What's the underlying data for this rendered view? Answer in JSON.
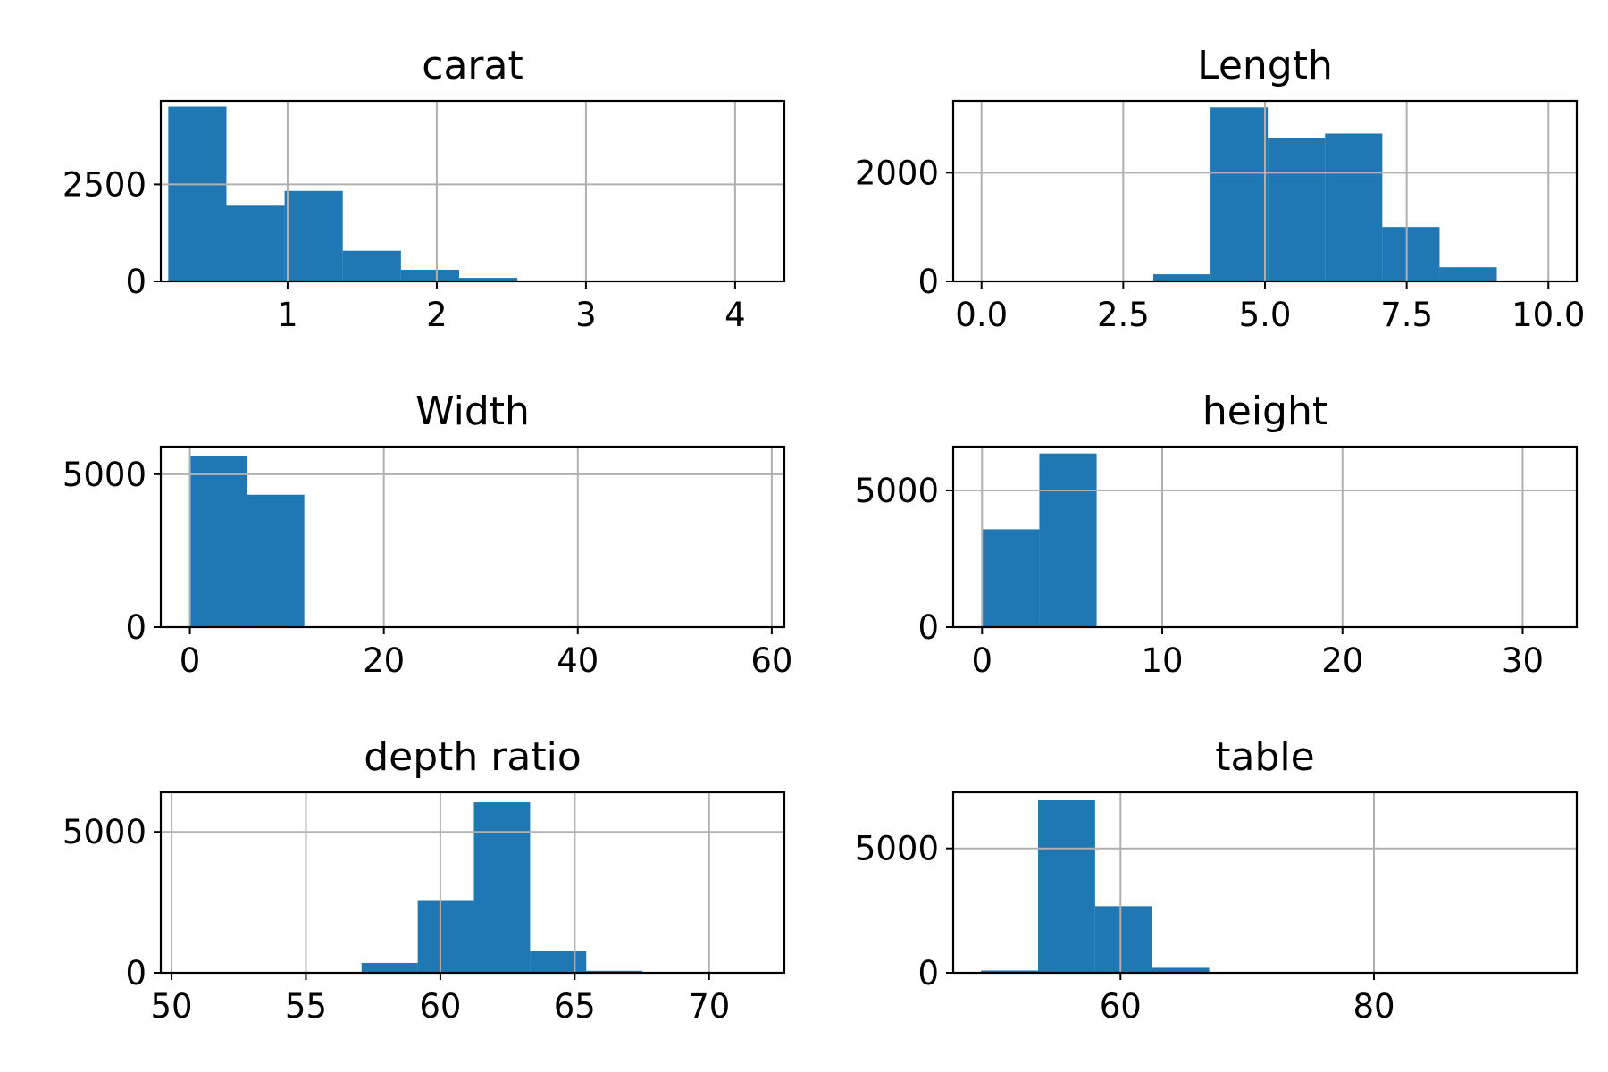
{
  "colors": {
    "bar": "#1f77b4",
    "grid": "#b0b0b0",
    "frame": "#000000"
  },
  "chart_data": [
    {
      "type": "bar",
      "title": "carat",
      "xlim": [
        0.15,
        4.33
      ],
      "ylim": [
        0,
        4650
      ],
      "xticks": [
        1,
        2,
        3,
        4
      ],
      "xtick_labels": [
        "1",
        "2",
        "3",
        "4"
      ],
      "yticks": [
        0,
        2500
      ],
      "ytick_labels": [
        "0",
        "2500"
      ],
      "bin_edges": [
        0.2,
        0.59,
        0.98,
        1.37,
        1.76,
        2.15,
        2.54,
        2.93,
        3.32,
        3.71,
        4.1
      ],
      "counts": [
        4500,
        1950,
        2330,
        790,
        300,
        90,
        10,
        5,
        2,
        1
      ],
      "grid": true
    },
    {
      "type": "bar",
      "title": "Length",
      "xlim": [
        -0.5,
        10.5
      ],
      "ylim": [
        0,
        3320
      ],
      "xticks": [
        0,
        2.5,
        5,
        7.5,
        10
      ],
      "xtick_labels": [
        "0.0",
        "2.5",
        "5.0",
        "7.5",
        "10.0"
      ],
      "yticks": [
        0,
        2000
      ],
      "ytick_labels": [
        "0",
        "2000"
      ],
      "bin_edges": [
        0,
        1.01,
        2.02,
        3.03,
        4.04,
        5.05,
        6.06,
        7.07,
        8.08,
        9.09,
        10.1
      ],
      "counts": [
        2,
        0,
        0,
        130,
        3200,
        2640,
        2720,
        1000,
        260,
        0
      ],
      "grid": true
    },
    {
      "type": "bar",
      "title": "Width",
      "xlim": [
        -3,
        61.3
      ],
      "ylim": [
        0,
        5900
      ],
      "xticks": [
        0,
        20,
        40,
        60
      ],
      "xtick_labels": [
        "0",
        "20",
        "40",
        "60"
      ],
      "yticks": [
        0,
        5000
      ],
      "ytick_labels": [
        "0",
        "5000"
      ],
      "bin_edges": [
        0,
        5.9,
        11.8,
        17.7,
        23.6,
        29.5,
        35.4,
        41.3,
        47.2,
        53.1,
        58.9
      ],
      "counts": [
        5600,
        4330,
        0,
        0,
        0,
        0,
        0,
        0,
        0,
        1
      ],
      "grid": true
    },
    {
      "type": "bar",
      "title": "height",
      "xlim": [
        -1.6,
        33.0
      ],
      "ylim": [
        0,
        6600
      ],
      "xticks": [
        0,
        10,
        20,
        30
      ],
      "xtick_labels": [
        "0",
        "10",
        "20",
        "30"
      ],
      "yticks": [
        0,
        5000
      ],
      "ytick_labels": [
        "0",
        "5000"
      ],
      "bin_edges": [
        0,
        3.18,
        6.36,
        9.54,
        12.72,
        15.9,
        19.08,
        22.26,
        25.44,
        28.62,
        31.8
      ],
      "counts": [
        3580,
        6350,
        0,
        0,
        0,
        0,
        0,
        0,
        0,
        1
      ],
      "grid": true
    },
    {
      "type": "bar",
      "title": "depth ratio",
      "xlim": [
        49.6,
        72.8
      ],
      "ylim": [
        0,
        6400
      ],
      "xticks": [
        50,
        55,
        60,
        65,
        70
      ],
      "xtick_labels": [
        "50",
        "55",
        "60",
        "65",
        "70"
      ],
      "yticks": [
        0,
        5000
      ],
      "ytick_labels": [
        "0",
        "5000"
      ],
      "bin_edges": [
        50.8,
        52.89,
        54.98,
        57.07,
        59.16,
        61.25,
        63.34,
        65.43,
        67.52,
        69.61,
        71.7
      ],
      "counts": [
        2,
        5,
        20,
        350,
        2550,
        6050,
        780,
        70,
        5,
        1
      ],
      "grid": true
    },
    {
      "type": "bar",
      "title": "table",
      "xlim": [
        46.8,
        96.0
      ],
      "ylim": [
        0,
        7250
      ],
      "xticks": [
        60,
        80
      ],
      "xtick_labels": [
        "60",
        "80"
      ],
      "yticks": [
        0,
        5000
      ],
      "ytick_labels": [
        "0",
        "5000"
      ],
      "bin_edges": [
        49,
        53.5,
        58,
        62.5,
        67,
        71.5,
        76,
        80.5,
        85,
        89.5,
        94
      ],
      "counts": [
        90,
        6950,
        2680,
        200,
        10,
        2,
        0,
        0,
        0,
        1
      ],
      "grid": true
    }
  ]
}
